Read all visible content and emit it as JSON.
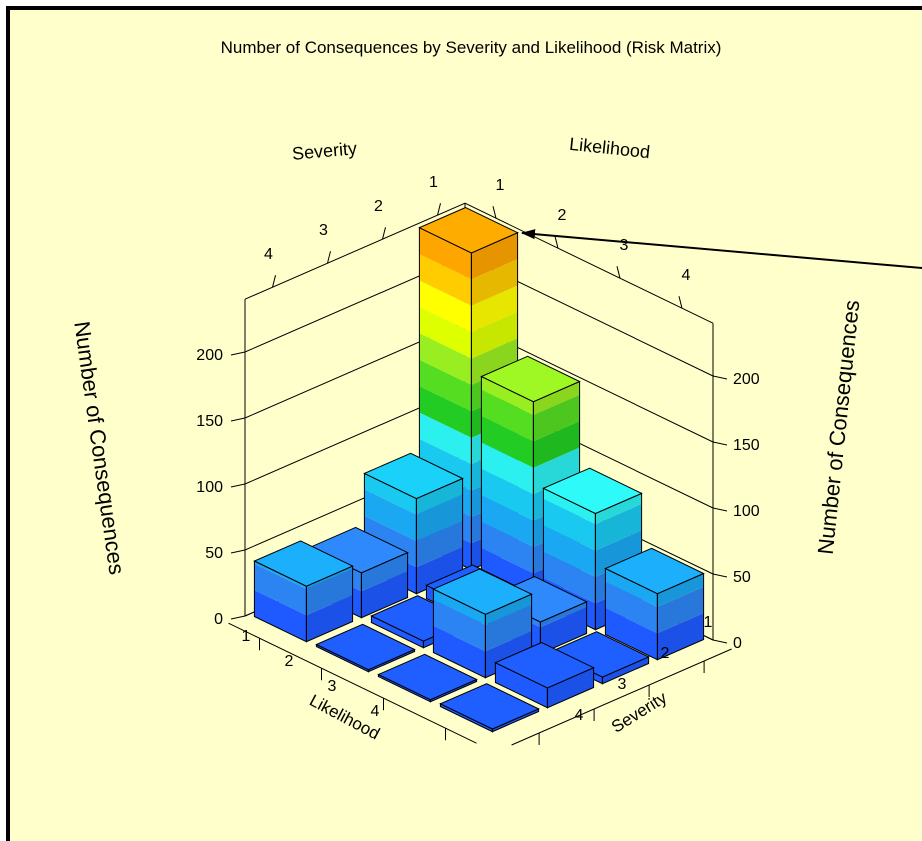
{
  "theme": {
    "background": "#ffffcc",
    "frame_color": "#000000",
    "band_colors": [
      "#1e5aff",
      "#2c84f2",
      "#1aa8f2",
      "#19c9f0",
      "#2cf0f0",
      "#22cc22",
      "#55dd22",
      "#99ee22",
      "#ddff00",
      "#ffff00",
      "#ffcc00",
      "#ffa500",
      "#ff7a00",
      "#ff4d00"
    ]
  },
  "chart_data": {
    "type": "bar3d",
    "title": "Number of Consequences by Severity and Likelihood (Risk Matrix)",
    "severity_label": "Severity",
    "likelihood_label": "Likelihood",
    "zlabel": "Number of Consequences",
    "severity_ticks": [
      "1",
      "2",
      "3",
      "4"
    ],
    "likelihood_ticks": [
      "1",
      "2",
      "3",
      "4"
    ],
    "z_ticks": [
      "0",
      "50",
      "100",
      "150",
      "200"
    ],
    "zlim": [
      0,
      240
    ],
    "grid": true,
    "annotation": "arrow pointing at tallest bar",
    "bars": [
      {
        "likelihood": 1,
        "severity": 1,
        "value": 240
      },
      {
        "likelihood": 1,
        "severity": 2,
        "value": 150
      },
      {
        "likelihood": 1,
        "severity": 3,
        "value": 88
      },
      {
        "likelihood": 1,
        "severity": 4,
        "value": 50
      },
      {
        "likelihood": 2,
        "severity": 1,
        "value": 72
      },
      {
        "likelihood": 2,
        "severity": 2,
        "value": 10
      },
      {
        "likelihood": 2,
        "severity": 3,
        "value": 24
      },
      {
        "likelihood": 2,
        "severity": 4,
        "value": 5
      },
      {
        "likelihood": 3,
        "severity": 1,
        "value": 34
      },
      {
        "likelihood": 3,
        "severity": 2,
        "value": 5
      },
      {
        "likelihood": 3,
        "severity": 3,
        "value": 48
      },
      {
        "likelihood": 3,
        "severity": 4,
        "value": 15
      },
      {
        "likelihood": 4,
        "severity": 1,
        "value": 42
      },
      {
        "likelihood": 4,
        "severity": 2,
        "value": 0
      },
      {
        "likelihood": 4,
        "severity": 3,
        "value": 0
      },
      {
        "likelihood": 4,
        "severity": 4,
        "value": 2
      }
    ]
  }
}
